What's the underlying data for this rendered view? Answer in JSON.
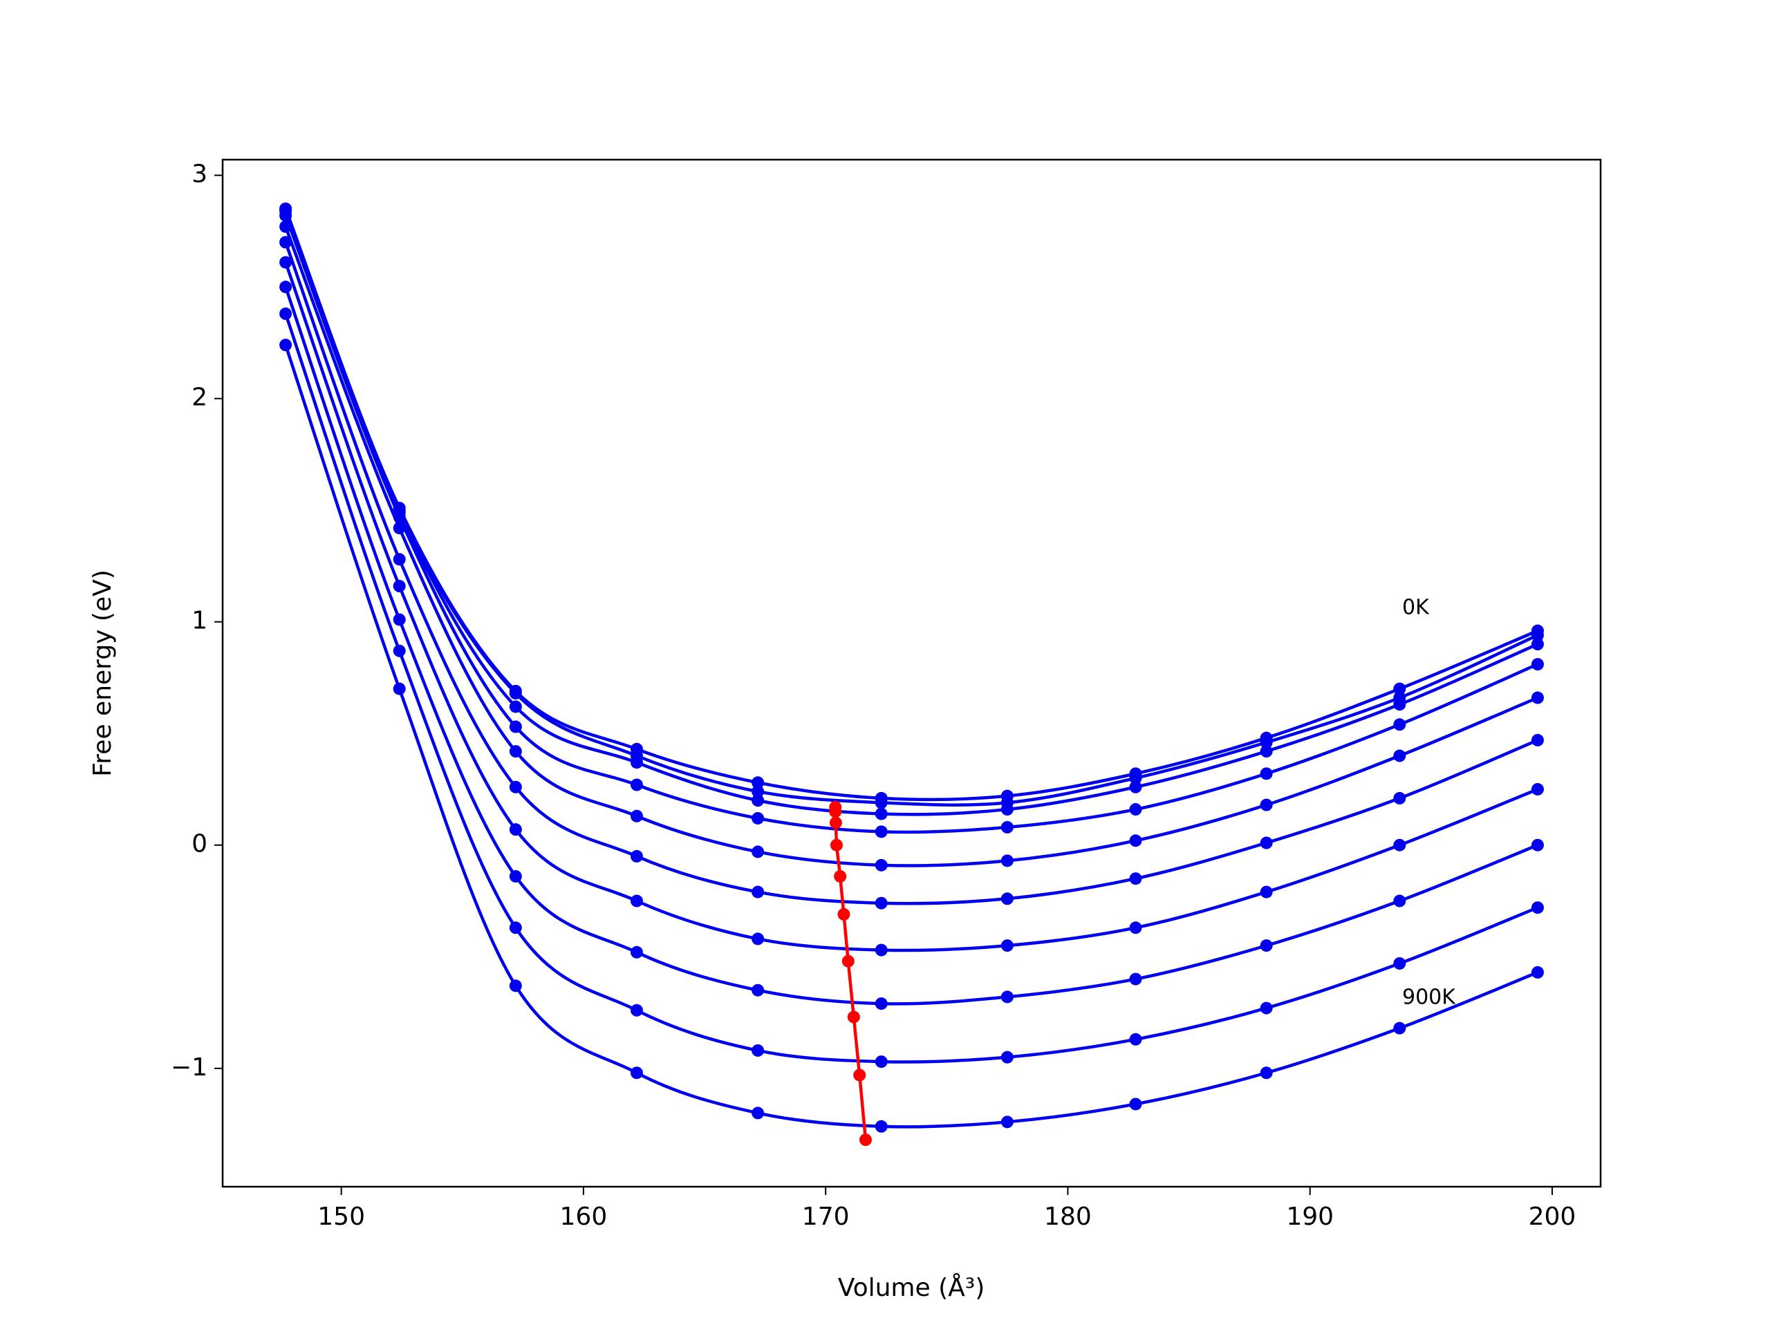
{
  "chart_data": {
    "type": "scatter",
    "x_label": "Volume (Å³)",
    "y_label": "Free energy (eV)",
    "annotations": [
      "0K",
      "900K"
    ],
    "x": [
      147.7,
      152.4,
      157.2,
      162.2,
      167.2,
      172.3,
      177.5,
      182.8,
      188.2,
      193.7,
      199.4
    ],
    "series": [
      {
        "color": "#0000ee",
        "values": [
          2.85,
          1.51,
          0.69,
          0.43,
          0.28,
          0.21,
          0.22,
          0.32,
          0.48,
          0.7,
          0.96
        ]
      },
      {
        "color": "#0000ee",
        "values": [
          2.85,
          1.5,
          0.68,
          0.4,
          0.24,
          0.19,
          0.19,
          0.3,
          0.46,
          0.66,
          0.94
        ]
      },
      {
        "color": "#0000ee",
        "values": [
          2.84,
          1.49,
          0.62,
          0.37,
          0.2,
          0.14,
          0.16,
          0.26,
          0.42,
          0.63,
          0.9
        ]
      },
      {
        "color": "#0000ee",
        "values": [
          2.82,
          1.47,
          0.53,
          0.27,
          0.12,
          0.06,
          0.08,
          0.16,
          0.32,
          0.54,
          0.81
        ]
      },
      {
        "color": "#0000ee",
        "values": [
          2.77,
          1.42,
          0.42,
          0.13,
          -0.03,
          -0.09,
          -0.07,
          0.02,
          0.18,
          0.4,
          0.66
        ]
      },
      {
        "color": "#0000ee",
        "values": [
          2.7,
          1.28,
          0.26,
          -0.05,
          -0.21,
          -0.26,
          -0.24,
          -0.15,
          0.01,
          0.21,
          0.47
        ]
      },
      {
        "color": "#0000ee",
        "values": [
          2.61,
          1.16,
          0.07,
          -0.25,
          -0.42,
          -0.47,
          -0.45,
          -0.37,
          -0.21,
          0.0,
          0.25
        ]
      },
      {
        "color": "#0000ee",
        "values": [
          2.5,
          1.01,
          -0.14,
          -0.48,
          -0.65,
          -0.71,
          -0.68,
          -0.6,
          -0.45,
          -0.25,
          0.0
        ]
      },
      {
        "color": "#0000ee",
        "values": [
          2.38,
          0.87,
          -0.37,
          -0.74,
          -0.92,
          -0.97,
          -0.95,
          -0.87,
          -0.73,
          -0.53,
          -0.28
        ]
      },
      {
        "color": "#0000ee",
        "values": [
          2.24,
          0.7,
          -0.63,
          -1.02,
          -1.2,
          -1.26,
          -1.24,
          -1.16,
          -1.02,
          -0.82,
          -0.57
        ]
      }
    ],
    "minimum": {
      "color": "#ff0000",
      "x": [
        170.4,
        170.4,
        170.42,
        170.45,
        170.6,
        170.75,
        170.93,
        171.16,
        171.4,
        171.65
      ],
      "values": [
        0.17,
        0.15,
        0.1,
        0.0,
        -0.14,
        -0.31,
        -0.52,
        -0.77,
        -1.03,
        -1.32
      ]
    },
    "xlim": [
      145.1,
      202.0
    ],
    "xticks": [
      150,
      160,
      170,
      180,
      190,
      200
    ],
    "ylim": [
      -1.53,
      3.07
    ],
    "yticks": [
      {
        "value": -1,
        "label": "−1"
      },
      0,
      1,
      2,
      3
    ],
    "grid": false
  }
}
